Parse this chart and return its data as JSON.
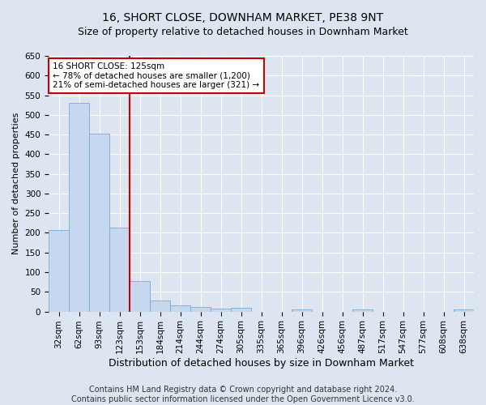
{
  "title": "16, SHORT CLOSE, DOWNHAM MARKET, PE38 9NT",
  "subtitle": "Size of property relative to detached houses in Downham Market",
  "xlabel": "Distribution of detached houses by size in Downham Market",
  "ylabel": "Number of detached properties",
  "categories": [
    "32sqm",
    "62sqm",
    "93sqm",
    "123sqm",
    "153sqm",
    "184sqm",
    "214sqm",
    "244sqm",
    "274sqm",
    "305sqm",
    "335sqm",
    "365sqm",
    "396sqm",
    "426sqm",
    "456sqm",
    "487sqm",
    "517sqm",
    "547sqm",
    "577sqm",
    "608sqm",
    "638sqm"
  ],
  "values": [
    207,
    530,
    452,
    213,
    78,
    27,
    15,
    12,
    8,
    9,
    0,
    0,
    6,
    0,
    0,
    6,
    0,
    0,
    0,
    0,
    6
  ],
  "bar_color": "#c5d8ef",
  "bar_edge_color": "#7aaacf",
  "vline_x": 3.5,
  "vline_color": "#cc0000",
  "annotation_line1": "16 SHORT CLOSE: 125sqm",
  "annotation_line2": "← 78% of detached houses are smaller (1,200)",
  "annotation_line3": "21% of semi-detached houses are larger (321) →",
  "annotation_box_color": "#ffffff",
  "annotation_box_edge_color": "#cc0000",
  "ylim": [
    0,
    650
  ],
  "yticks": [
    0,
    50,
    100,
    150,
    200,
    250,
    300,
    350,
    400,
    450,
    500,
    550,
    600,
    650
  ],
  "footnote": "Contains HM Land Registry data © Crown copyright and database right 2024.\nContains public sector information licensed under the Open Government Licence v3.0.",
  "background_color": "#dde6f0",
  "plot_bg_color": "#dde6f0",
  "grid_color": "#ffffff",
  "title_fontsize": 10,
  "subtitle_fontsize": 9,
  "xlabel_fontsize": 9,
  "ylabel_fontsize": 8,
  "tick_fontsize": 7.5,
  "footnote_fontsize": 7
}
